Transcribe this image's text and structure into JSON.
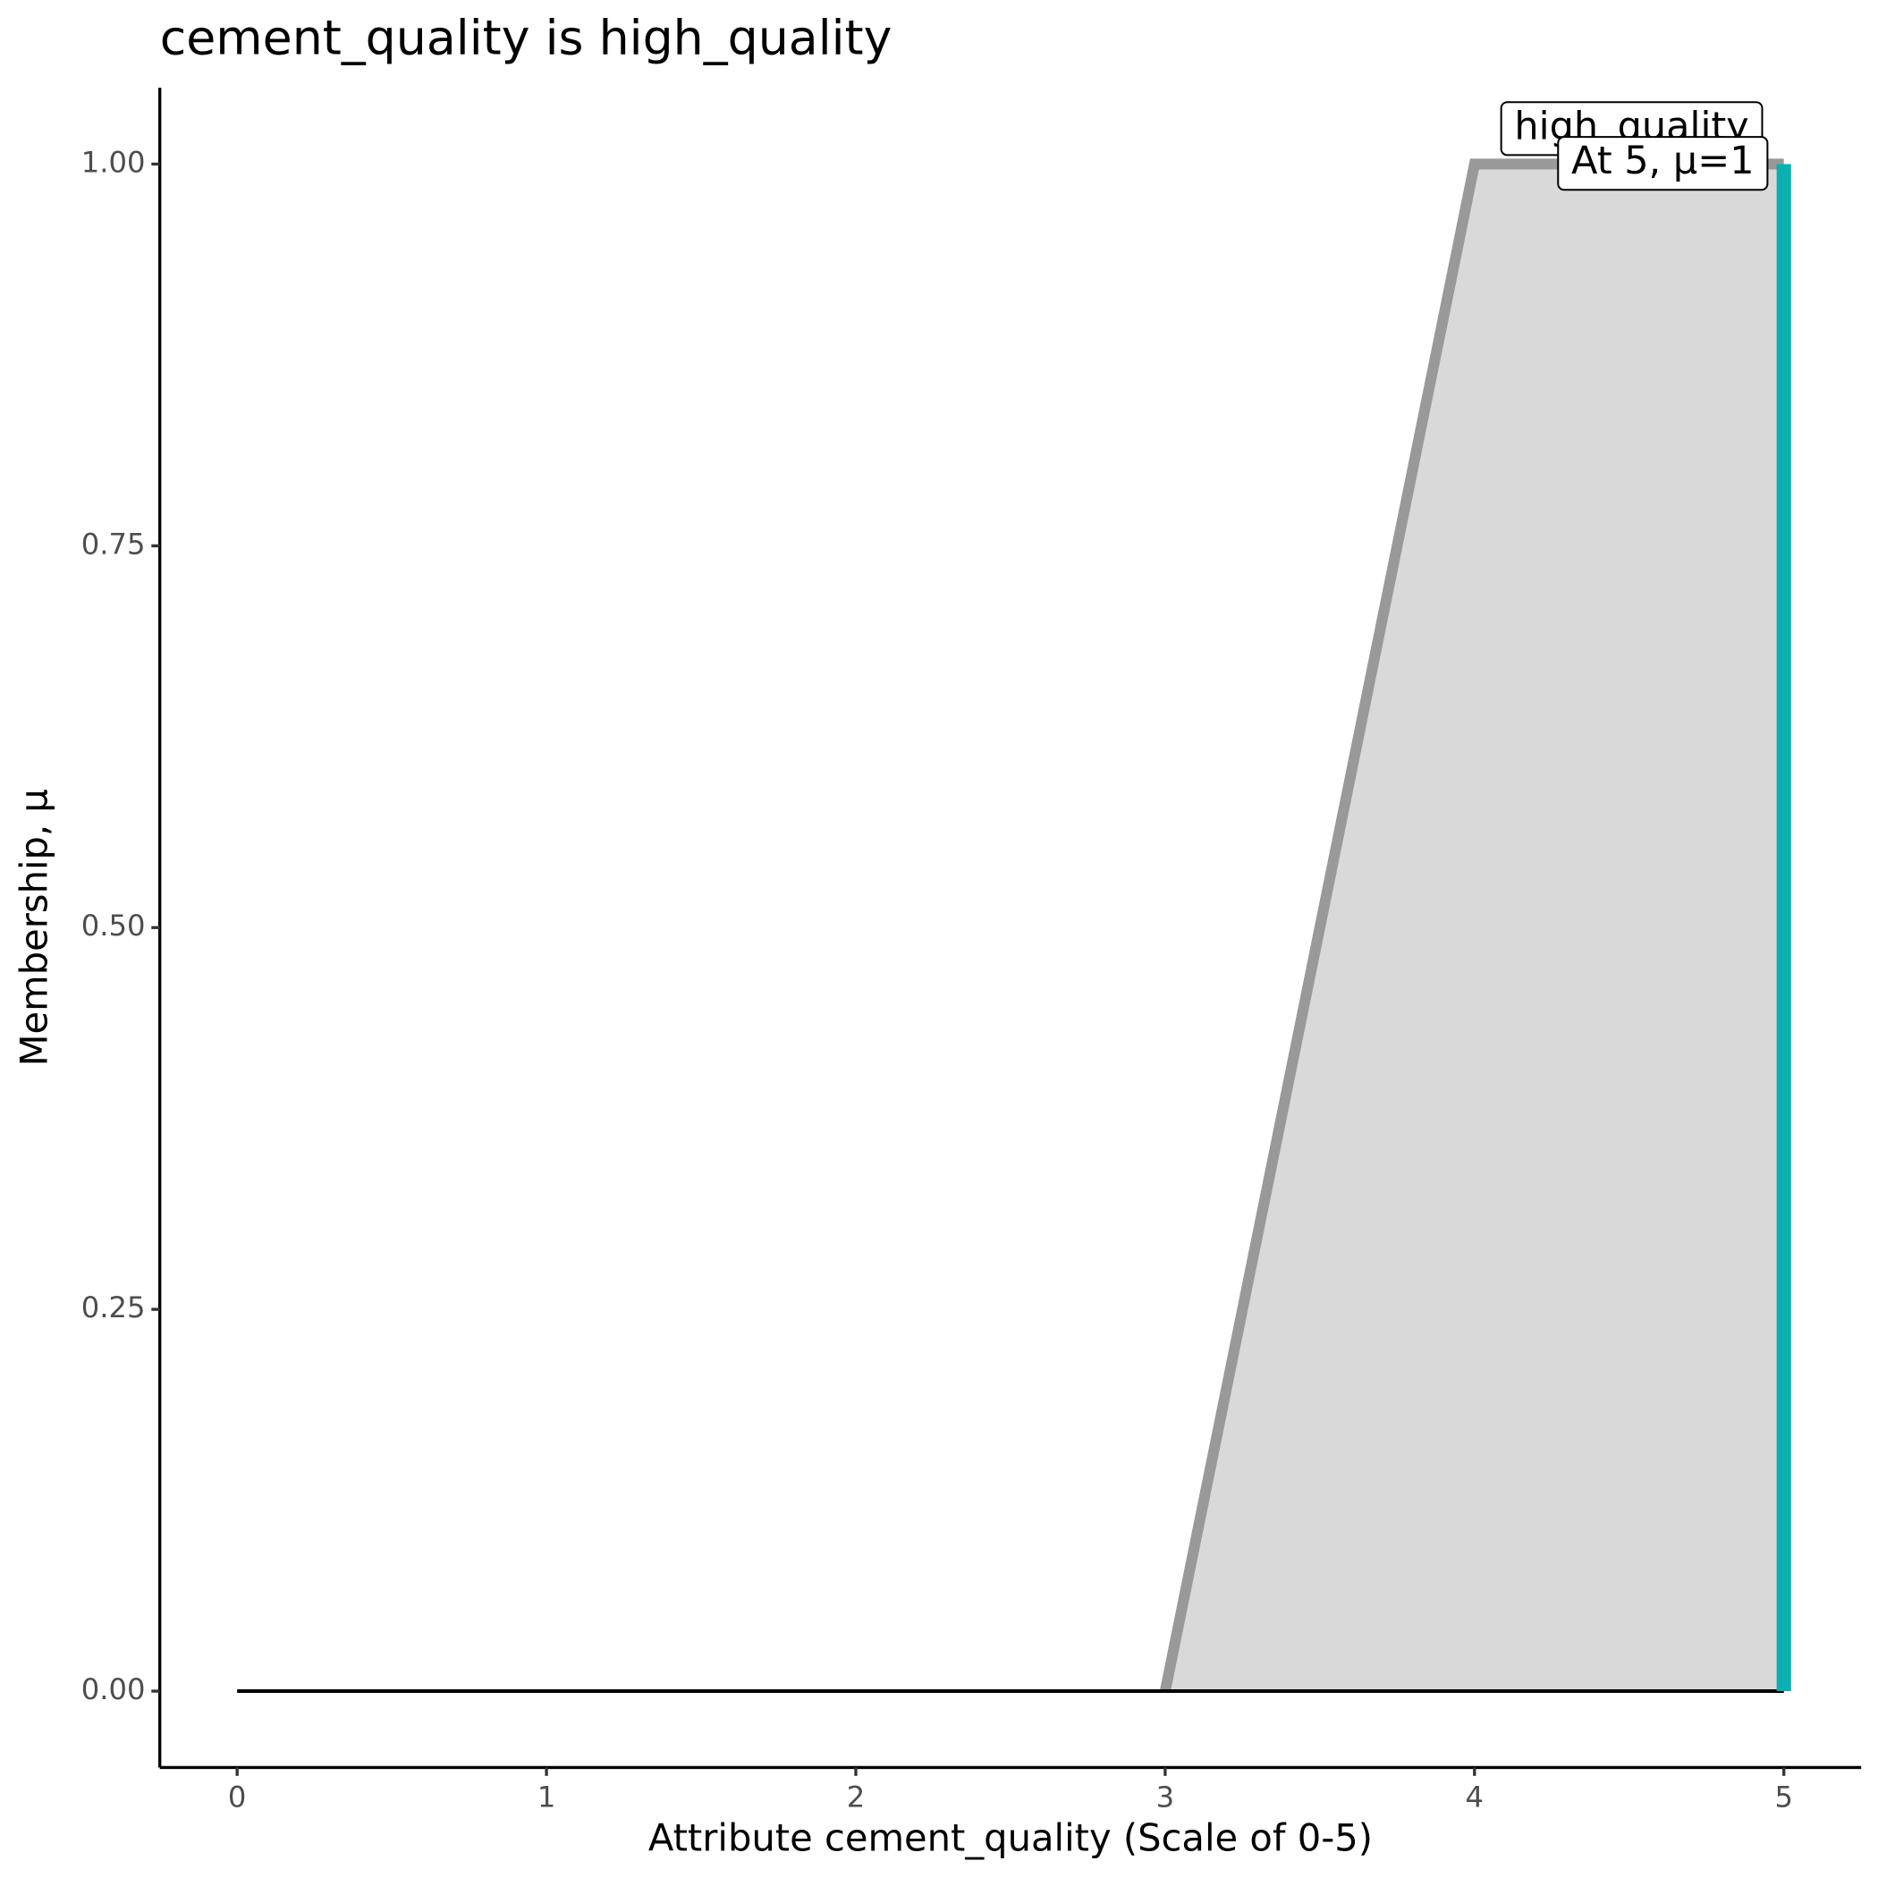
{
  "chart_data": {
    "type": "area",
    "title": "cement_quality is high_quality",
    "x_label": "Attribute cement_quality (Scale of 0-5)",
    "y_label": "Membership, μ",
    "x": [
      3,
      4,
      5
    ],
    "values": [
      0,
      1,
      1
    ],
    "fill": "#d9d9d9",
    "color": "#999999",
    "baseline": {
      "x": [
        0,
        5
      ],
      "values": [
        0,
        0
      ],
      "color": "#000000"
    },
    "marker": {
      "x": 5,
      "value": 1,
      "color": "#0aafaf"
    },
    "annotations": [
      "high_quality",
      "At 5, μ=1"
    ],
    "xlim": [
      -0.25,
      5.25
    ],
    "ylim": [
      -0.05,
      1.05
    ],
    "xticks": [
      0,
      1,
      2,
      3,
      4,
      5
    ],
    "yticks": [
      {
        "value": 0,
        "label": "0.00"
      },
      {
        "value": 0.25,
        "label": "0.25"
      },
      {
        "value": 0.5,
        "label": "0.50"
      },
      {
        "value": 0.75,
        "label": "0.75"
      },
      {
        "value": 1,
        "label": "1.00"
      }
    ]
  }
}
